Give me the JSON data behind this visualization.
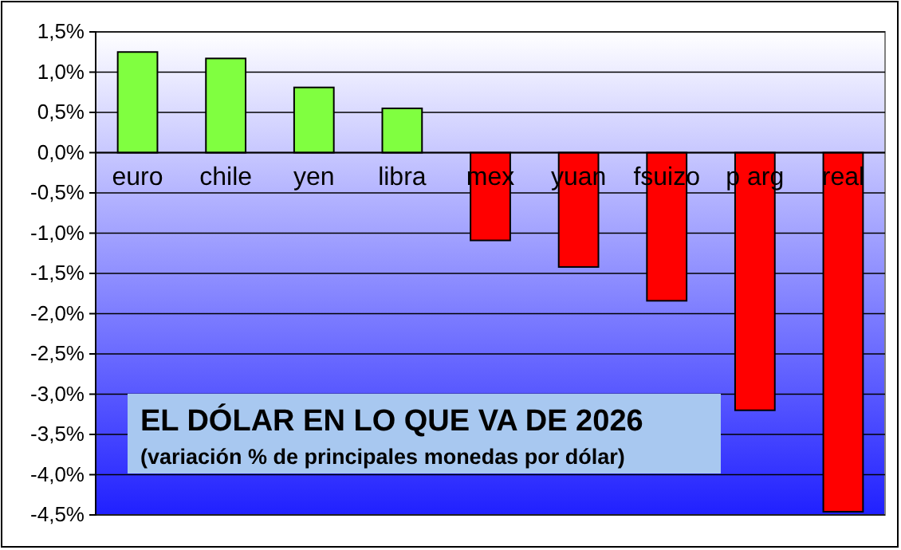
{
  "chart_data": {
    "type": "bar",
    "title": "EL DÓLAR EN LO QUE VA DE 2026",
    "subtitle": "(variación % de principales monedas por dólar)",
    "categories": [
      "euro",
      "chile",
      "yen",
      "libra",
      "mex",
      "yuan",
      "fsuizo",
      "p arg",
      "real"
    ],
    "values": [
      1.25,
      1.17,
      0.81,
      0.55,
      -1.09,
      -1.42,
      -1.84,
      -3.2,
      -4.46
    ],
    "colors": [
      "#80ff40",
      "#80ff40",
      "#80ff40",
      "#80ff40",
      "#ff0000",
      "#ff0000",
      "#ff0000",
      "#ff0000",
      "#ff0000"
    ],
    "ylim": [
      -4.5,
      1.5
    ],
    "yticks": [
      {
        "value": 1.5,
        "label": "1,5%"
      },
      {
        "value": 1,
        "label": "1,0%"
      },
      {
        "value": 0.5,
        "label": "0,5%"
      },
      {
        "value": 0,
        "label": "0,0%"
      },
      {
        "value": -0.5,
        "label": "-0,5%"
      },
      {
        "value": -1,
        "label": "-1,0%"
      },
      {
        "value": -1.5,
        "label": "-1,5%"
      },
      {
        "value": -2,
        "label": "-2,0%"
      },
      {
        "value": -2.5,
        "label": "-2,5%"
      },
      {
        "value": -3,
        "label": "-3,0%"
      },
      {
        "value": -3.5,
        "label": "-3,5%"
      },
      {
        "value": -4,
        "label": "-4,0%"
      },
      {
        "value": -4.5,
        "label": "-4,5%"
      }
    ],
    "grid": "y"
  }
}
